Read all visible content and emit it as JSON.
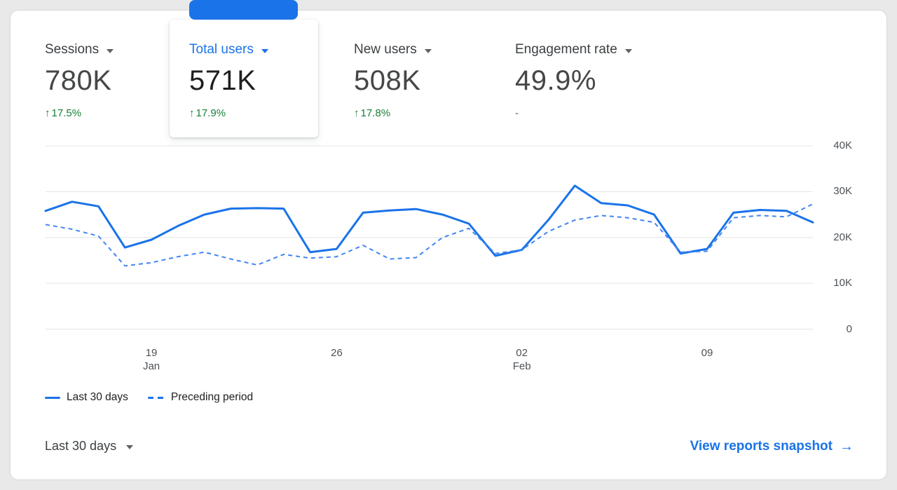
{
  "colors": {
    "accent_blue": "#1a73e8",
    "dashed_blue": "#4285f4",
    "positive_green": "#188038",
    "page_background": "#e9e9e9",
    "card_background": "#ffffff"
  },
  "icons": {
    "up_arrow": "↑",
    "right_arrow": "→"
  },
  "metrics": [
    {
      "label": "Sessions",
      "value": "780K",
      "delta": "17.5%",
      "direction": "up",
      "selected": false
    },
    {
      "label": "Total users",
      "value": "571K",
      "delta": "17.9%",
      "direction": "up",
      "selected": true
    },
    {
      "label": "New users",
      "value": "508K",
      "delta": "17.8%",
      "direction": "up",
      "selected": false
    },
    {
      "label": "Engagement rate",
      "value": "49.9%",
      "delta": "-",
      "direction": "none",
      "selected": false
    }
  ],
  "footer": {
    "range_label": "Last 30 days",
    "link_label": "View reports snapshot"
  },
  "chart_data": {
    "type": "line",
    "title": "",
    "unit": "thousands",
    "ylim": [
      0,
      40
    ],
    "grid": true,
    "legend_position": "bottom-left",
    "y_ticks": [
      {
        "value": 0,
        "label": "0"
      },
      {
        "value": 10,
        "label": "10K"
      },
      {
        "value": 20,
        "label": "20K"
      },
      {
        "value": 30,
        "label": "30K"
      },
      {
        "value": 40,
        "label": "40K"
      }
    ],
    "x_ticks": [
      {
        "index": 4,
        "label": "19",
        "sub": "Jan"
      },
      {
        "index": 11,
        "label": "26",
        "sub": ""
      },
      {
        "index": 18,
        "label": "02",
        "sub": "Feb"
      },
      {
        "index": 25,
        "label": "09",
        "sub": ""
      }
    ],
    "series": [
      {
        "name": "Last 30 days",
        "style": "solid",
        "color": "#1a73e8",
        "values": [
          25.8,
          27.8,
          26.8,
          17.8,
          19.5,
          22.5,
          25.0,
          26.3,
          26.4,
          26.3,
          16.8,
          17.5,
          25.4,
          25.9,
          26.2,
          25.0,
          23.0,
          16.0,
          17.3,
          23.8,
          31.3,
          27.5,
          27.0,
          25.0,
          16.5,
          17.5,
          25.4,
          26.0,
          25.8,
          23.3
        ]
      },
      {
        "name": "Preceding period",
        "style": "dashed",
        "color": "#4285f4",
        "values": [
          22.8,
          21.8,
          20.3,
          13.8,
          14.5,
          15.8,
          16.8,
          15.3,
          14.0,
          16.3,
          15.5,
          15.8,
          18.3,
          15.3,
          15.6,
          20.0,
          22.0,
          16.5,
          17.3,
          21.3,
          23.8,
          24.8,
          24.3,
          23.3,
          16.8,
          17.0,
          24.3,
          24.8,
          24.5,
          27.3
        ]
      }
    ]
  }
}
